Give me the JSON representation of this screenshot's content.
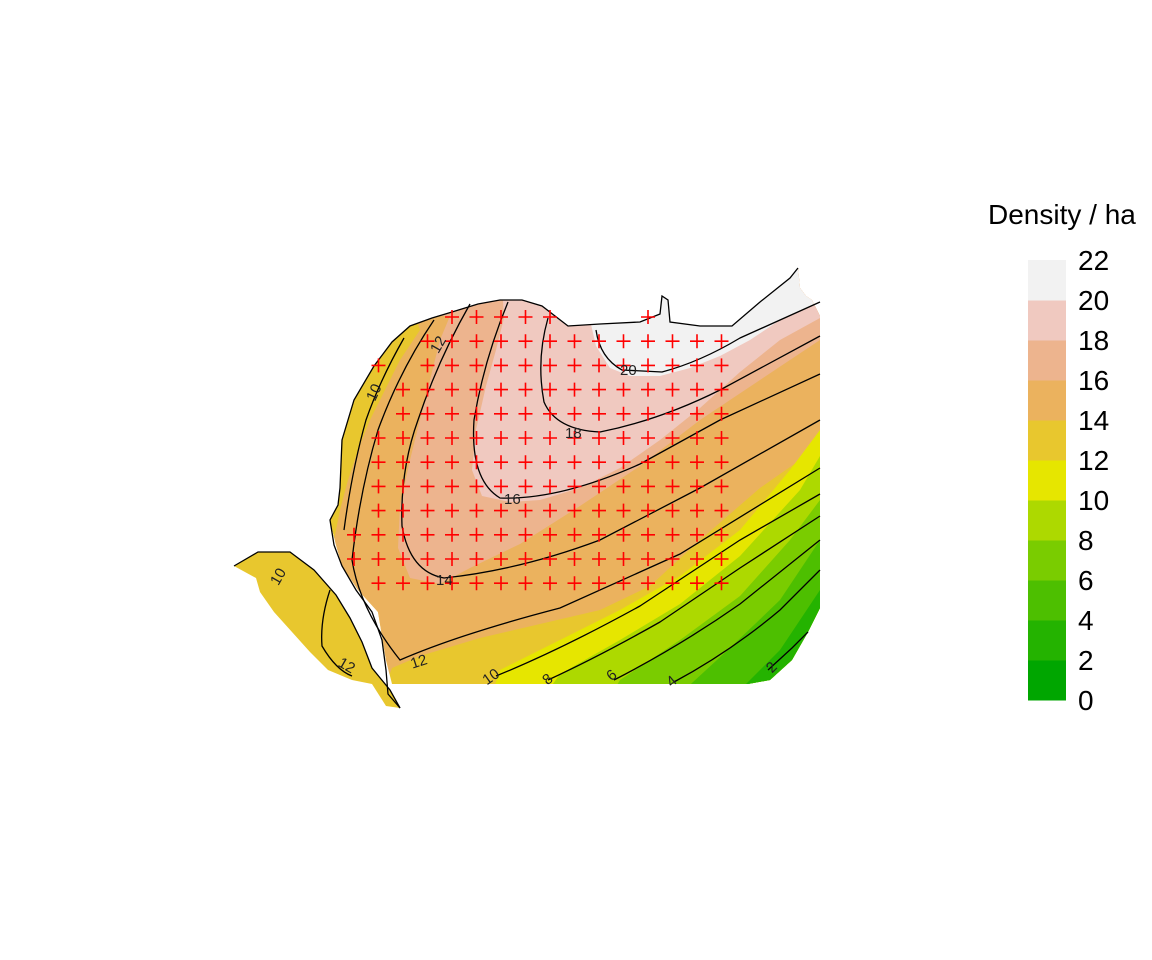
{
  "legend": {
    "title": "Density / ha",
    "breaks": [
      0,
      2,
      4,
      6,
      8,
      10,
      12,
      14,
      16,
      18,
      20,
      22
    ],
    "labels": [
      "0",
      "2",
      "4",
      "6",
      "8",
      "10",
      "12",
      "14",
      "16",
      "18",
      "20",
      "22"
    ],
    "colors": [
      "#00A600",
      "#24B300",
      "#4DBF00",
      "#7ACC00",
      "#ADD900",
      "#E6E600",
      "#E8C72E",
      "#EBB25E",
      "#EDB48E",
      "#F0C9C0",
      "#F2F2F2"
    ]
  },
  "contour_labels": {
    "items": [
      {
        "text": "20"
      },
      {
        "text": "18"
      },
      {
        "text": "16"
      },
      {
        "text": "14"
      },
      {
        "text": "12"
      },
      {
        "text": "12"
      },
      {
        "text": "12"
      },
      {
        "text": "10"
      },
      {
        "text": "10"
      },
      {
        "text": "10"
      },
      {
        "text": "8"
      },
      {
        "text": "6"
      },
      {
        "text": "4"
      },
      {
        "text": "2"
      }
    ]
  },
  "sample_points": {
    "marker": "plus",
    "color": "#FF0000",
    "rows": [
      {
        "cols": [
          4,
          5,
          6,
          7,
          8,
          12
        ]
      },
      {
        "cols": [
          3,
          4,
          5,
          6,
          7,
          8,
          9,
          10,
          11,
          12,
          13,
          14,
          15
        ]
      },
      {
        "cols": [
          1,
          3,
          4,
          5,
          6,
          7,
          8,
          9,
          10,
          11,
          12,
          13,
          14,
          15
        ]
      },
      {
        "cols": [
          2,
          3,
          4,
          5,
          6,
          7,
          8,
          9,
          10,
          11,
          12,
          13,
          14,
          15
        ]
      },
      {
        "cols": [
          2,
          3,
          4,
          5,
          6,
          7,
          8,
          9,
          10,
          11,
          12,
          13,
          14,
          15
        ]
      },
      {
        "cols": [
          1,
          2,
          3,
          4,
          5,
          6,
          7,
          8,
          9,
          10,
          11,
          12,
          13,
          14,
          15
        ]
      },
      {
        "cols": [
          1,
          2,
          3,
          4,
          5,
          6,
          7,
          8,
          9,
          10,
          11,
          12,
          13,
          14,
          15
        ]
      },
      {
        "cols": [
          1,
          2,
          3,
          4,
          5,
          6,
          7,
          8,
          9,
          10,
          11,
          12,
          13,
          14,
          15
        ]
      },
      {
        "cols": [
          1,
          2,
          3,
          4,
          5,
          6,
          7,
          8,
          9,
          10,
          11,
          12,
          13,
          14,
          15
        ]
      },
      {
        "cols": [
          0,
          1,
          2,
          3,
          4,
          5,
          6,
          7,
          8,
          9,
          10,
          11,
          12,
          13,
          14,
          15
        ]
      },
      {
        "cols": [
          0,
          1,
          2,
          3,
          4,
          5,
          6,
          7,
          8,
          9,
          10,
          11,
          12,
          13,
          14,
          15
        ]
      },
      {
        "cols": [
          1,
          2,
          3,
          4,
          5,
          6,
          7,
          8,
          9,
          10,
          11,
          12,
          13,
          14,
          15
        ]
      }
    ]
  }
}
